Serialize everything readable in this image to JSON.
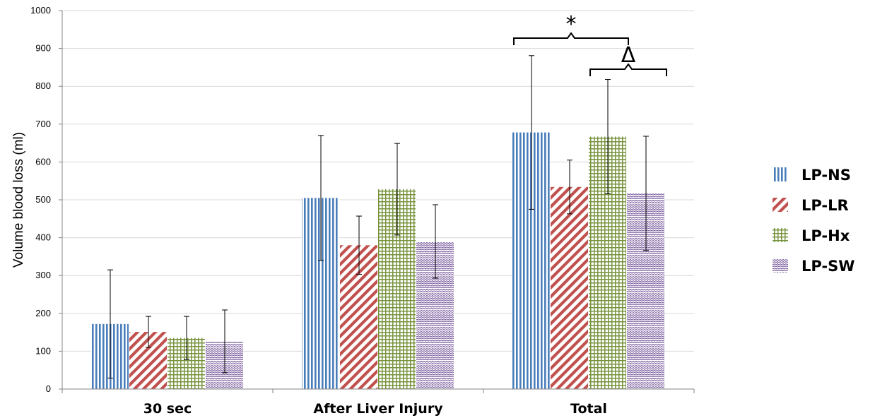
{
  "chart_data": {
    "type": "bar",
    "title": "",
    "xlabel": "",
    "ylabel": "Volume blood loss (ml)",
    "ylim": [
      0,
      1000
    ],
    "yticks": [
      0,
      100,
      200,
      300,
      400,
      500,
      600,
      700,
      800,
      900,
      1000
    ],
    "grid": true,
    "legend_position": "right",
    "categories": [
      "30 sec",
      "After Liver Injury",
      "Total"
    ],
    "series": [
      {
        "name": "LP-NS",
        "color": "#4a7ebb",
        "pattern": "vertical-lines",
        "values": [
          172,
          505,
          678
        ],
        "error": [
          143,
          165,
          203
        ]
      },
      {
        "name": "LP-LR",
        "color": "#c0504d",
        "pattern": "diagonal-lines",
        "values": [
          151,
          380,
          534
        ],
        "error": [
          41,
          77,
          71
        ]
      },
      {
        "name": "LP-Hx",
        "color": "#77933c",
        "pattern": "grid",
        "values": [
          135,
          528,
          667
        ],
        "error": [
          57,
          121,
          151
        ]
      },
      {
        "name": "LP-SW",
        "color": "#8064a2",
        "pattern": "wave",
        "values": [
          126,
          390,
          517
        ],
        "error": [
          83,
          97,
          151
        ]
      }
    ],
    "annotations": [
      {
        "text": "*",
        "category": "Total",
        "between": [
          "LP-NS",
          "LP-Hx"
        ]
      },
      {
        "text": "Δ",
        "category": "Total",
        "between": [
          "LP-Hx",
          "LP-SW"
        ]
      }
    ]
  }
}
